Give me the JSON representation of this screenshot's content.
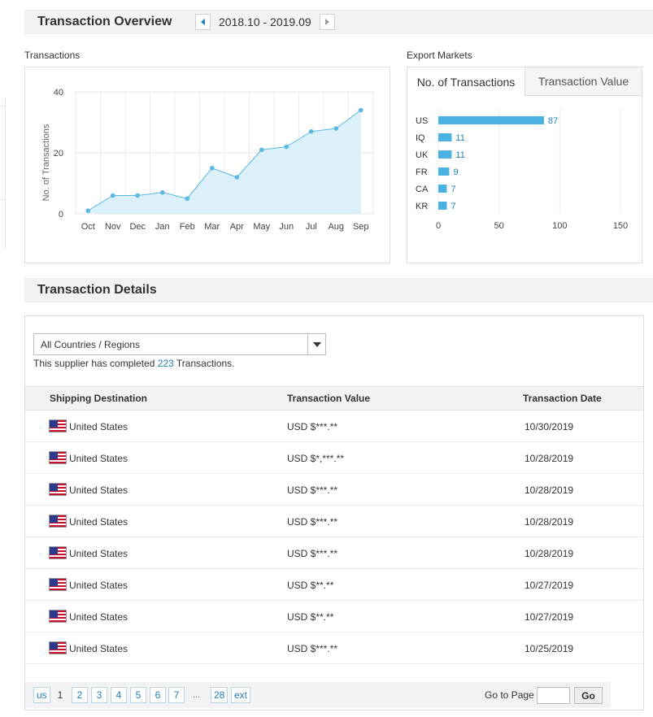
{
  "overview": {
    "title": "Transaction Overview",
    "date_range": "2018.10 - 2019.09"
  },
  "transactions_panel": {
    "label": "Transactions"
  },
  "markets_panel": {
    "label": "Export Markets",
    "tabs": [
      "No. of Transactions",
      "Transaction Value"
    ],
    "active_tab": 0
  },
  "chart_data": [
    {
      "type": "area",
      "title": "",
      "xlabel": "",
      "ylabel": "No. of Transactions",
      "categories": [
        "Oct",
        "Nov",
        "Dec",
        "Jan",
        "Feb",
        "Mar",
        "Apr",
        "May",
        "Jun",
        "Jul",
        "Aug",
        "Sep"
      ],
      "values": [
        1,
        6,
        6,
        7,
        5,
        15,
        12,
        21,
        22,
        27,
        28,
        34
      ],
      "ylim": [
        0,
        40
      ],
      "yticks": [
        0,
        20,
        40
      ],
      "grid": true,
      "color": "#5bb8e3",
      "fill": "#dcf0fa"
    },
    {
      "type": "bar",
      "orientation": "horizontal",
      "categories": [
        "US",
        "IQ",
        "UK",
        "FR",
        "CA",
        "KR"
      ],
      "values": [
        87,
        11,
        11,
        9,
        7,
        7
      ],
      "xlim": [
        0,
        150
      ],
      "xticks": [
        0,
        50,
        100,
        150
      ],
      "show_values": true,
      "color": "#49b2e3"
    }
  ],
  "details": {
    "title": "Transaction Details",
    "country_select": "All Countries / Regions",
    "note_prefix": "This supplier has completed",
    "note_count": "223",
    "note_suffix": "Transactions.",
    "columns": [
      "Shipping Destination",
      "Transaction Value",
      "Transaction Date"
    ],
    "rows": [
      {
        "destination": "United States",
        "value": "USD $***.**",
        "date": "10/30/2019"
      },
      {
        "destination": "United States",
        "value": "USD $*,***.**",
        "date": "10/28/2019"
      },
      {
        "destination": "United States",
        "value": "USD $***.**",
        "date": "10/28/2019"
      },
      {
        "destination": "United States",
        "value": "USD $***.**",
        "date": "10/28/2019"
      },
      {
        "destination": "United States",
        "value": "USD $***.**",
        "date": "10/28/2019"
      },
      {
        "destination": "United States",
        "value": "USD $**.**",
        "date": "10/27/2019"
      },
      {
        "destination": "United States",
        "value": "USD $**.**",
        "date": "10/27/2019"
      },
      {
        "destination": "United States",
        "value": "USD $***.**",
        "date": "10/25/2019"
      }
    ]
  },
  "pagination": {
    "prev_label": "us",
    "current": "1",
    "pages": [
      "2",
      "3",
      "4",
      "5",
      "6",
      "7"
    ],
    "ellipsis": "...",
    "last": "28",
    "next_label": "ext",
    "goto_label": "Go to Page",
    "go_label": "Go"
  },
  "colors": {
    "accent": "#1e7fb8",
    "chart_line": "#5bb8e3",
    "bar": "#49b2e3",
    "section_bg": "#f3f3f3"
  }
}
